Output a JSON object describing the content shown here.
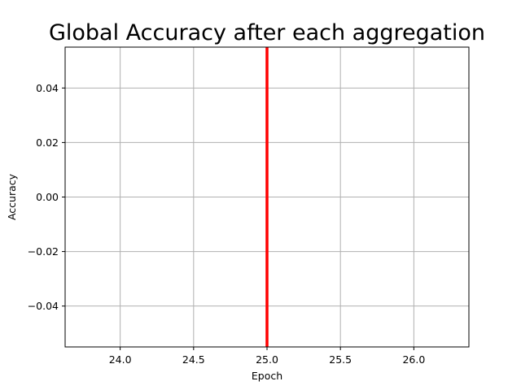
{
  "chart_data": {
    "type": "vertical-line",
    "title": "Global Accuracy after each aggregation",
    "xlabel": "Epoch",
    "ylabel": "Accuracy",
    "xlim": [
      23.625,
      26.375
    ],
    "ylim": [
      -0.055,
      0.055
    ],
    "xticks": [
      24.0,
      24.5,
      25.0,
      25.5,
      26.0
    ],
    "xtick_labels": [
      "24.0",
      "24.5",
      "25.0",
      "25.5",
      "26.0"
    ],
    "yticks": [
      0.04,
      0.02,
      0.0,
      -0.02,
      -0.04
    ],
    "ytick_labels": [
      "0.04",
      "0.02",
      "0.00",
      "−0.02",
      "−0.04"
    ],
    "grid": true,
    "grid_color": "#b0b0b0",
    "series": [
      {
        "x": [
          25.0
        ],
        "color": "#ff0000"
      }
    ]
  }
}
